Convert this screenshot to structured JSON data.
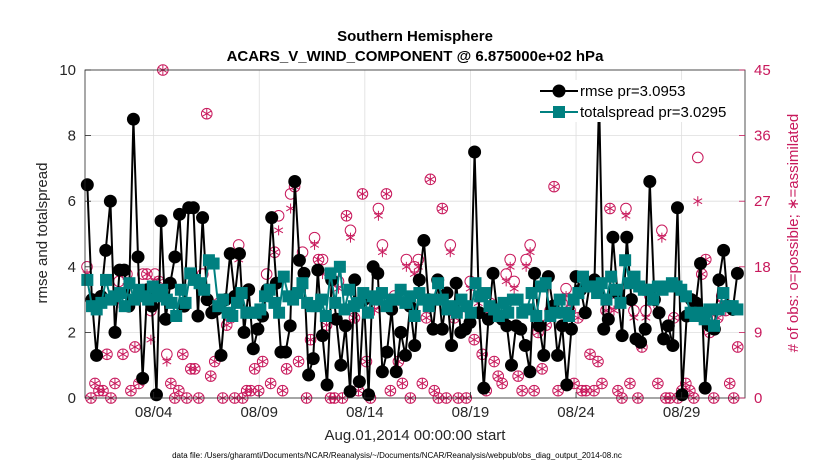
{
  "chart_data": {
    "type": "line",
    "title": "Southern Hemisphere",
    "subtitle": "ACARS_V_WIND_COMPONENT @ 6.875000e+02 hPa",
    "xlabel": "Aug.01,2014 00:00:00 start",
    "ylabel_left": "rmse and totalspread",
    "ylabel_right": "# of obs: o=possible; ∗=assimilated",
    "footnote": "data file: /Users/gharamti/Documents/NCAR/Reanalysis/~/Documents/NCAR/Reanalysis/webpub/obs_diag_output_2014-08.nc",
    "x_range_days": [
      0,
      31.25
    ],
    "ylim_left": [
      0,
      10
    ],
    "ylim_right": [
      0,
      45
    ],
    "x_ticks": [
      {
        "day": 3.25,
        "label": "08/04"
      },
      {
        "day": 8.25,
        "label": "08/09"
      },
      {
        "day": 13.25,
        "label": "08/14"
      },
      {
        "day": 18.25,
        "label": "08/19"
      },
      {
        "day": 23.25,
        "label": "08/24"
      },
      {
        "day": 28.25,
        "label": "08/29"
      }
    ],
    "y_ticks_left": [
      "0",
      "2",
      "4",
      "6",
      "8",
      "10"
    ],
    "y_ticks_right": [
      "0",
      "9",
      "18",
      "27",
      "36",
      "45"
    ],
    "series": [
      {
        "name": "rmse",
        "legend": "rmse pr=3.0953",
        "color": "#000000",
        "values": [
          6.5,
          3.0,
          1.3,
          3.1,
          4.5,
          6.0,
          2.0,
          3.9,
          3.9,
          2.8,
          8.5,
          4.3,
          0.6,
          3.3,
          2.8,
          0.1,
          5.4,
          2.4,
          3.5,
          4.3,
          5.6,
          2.8,
          5.8,
          5.8,
          2.5,
          5.5,
          3.0,
          2.6,
          2.7,
          1.3,
          3.0,
          4.4,
          3.1,
          4.4,
          2.0,
          3.3,
          1.5,
          2.1,
          2.5,
          3.3,
          5.5,
          3.5,
          1.4,
          1.4,
          2.2,
          6.6,
          4.2,
          3.8,
          0.7,
          1.2,
          3.9,
          1.9,
          0.4,
          3.6,
          2.4,
          1.0,
          2.2,
          0.2,
          3.6,
          0.5,
          3.0,
          0.1,
          4.0,
          3.8,
          0.8,
          1.4,
          2.7,
          0.8,
          2.0,
          1.3,
          2.8,
          1.6,
          3.6,
          4.8,
          3.0,
          2.1,
          3.6,
          2.1,
          3.2,
          1.6,
          3.5,
          2.0,
          2.1,
          2.3,
          7.5,
          2.6,
          0.3,
          2.4,
          3.8,
          2.5,
          2.4,
          2.2,
          1.0,
          2.2,
          2.1,
          1.6,
          0.8,
          3.8,
          2.2,
          1.3,
          3.7,
          2.8,
          1.3,
          2.2,
          0.4,
          2.1,
          3.7,
          3.3,
          2.6,
          3.5,
          3.6,
          9.1,
          2.1,
          2.4,
          4.9,
          3.2,
          1.9,
          4.9,
          3.0,
          1.8,
          1.7,
          2.1,
          6.6,
          3.0,
          2.6,
          1.8,
          2.2,
          1.6,
          5.8,
          0.1,
          2.5,
          3.0,
          2.9,
          4.1,
          0.3,
          2.2,
          2.1,
          3.6,
          4.5,
          2.8,
          2.7,
          3.8
        ],
        "values_y_unit": "rmse"
      },
      {
        "name": "totalspread",
        "legend": "totalspread pr=3.0295",
        "color": "#008080",
        "values": [
          3.6,
          2.8,
          2.7,
          2.9,
          3.6,
          3.0,
          3.1,
          3.2,
          2.8,
          3.5,
          3.0,
          3.3,
          3.1,
          3.0,
          3.4,
          3.1,
          3.3,
          3.0,
          2.9,
          2.5,
          3.3,
          2.9,
          3.8,
          3.6,
          3.5,
          3.3,
          4.2,
          4.1,
          2.8,
          3.0,
          2.6,
          2.5,
          2.9,
          3.2,
          2.6,
          2.6,
          2.6,
          2.7,
          3.1,
          3.3,
          2.9,
          2.6,
          3.7,
          3.1,
          3.0,
          3.2,
          3.5,
          2.9,
          2.8,
          2.8,
          3.0,
          2.5,
          3.8,
          2.9,
          4.0,
          2.7,
          3.3,
          2.8,
          2.9,
          3.2,
          2.6,
          3.1,
          3.0,
          3.2,
          2.8,
          3.0,
          3.0,
          3.3,
          2.9,
          3.1,
          2.5,
          3.2,
          3.0,
          2.8,
          3.0,
          3.5,
          3.0,
          2.7,
          2.8,
          2.6,
          3.0,
          2.8,
          2.6,
          3.5,
          3.1,
          3.2,
          2.8,
          2.7,
          2.5,
          2.9,
          2.6,
          3.0,
          3.0,
          2.6,
          2.7,
          3.2,
          2.5,
          3.4,
          3.5,
          2.5,
          2.6,
          3.0,
          2.6,
          2.5,
          3.0,
          3.2,
          3.7,
          3.4,
          3.4,
          3.2,
          3.5,
          3.0,
          3.7,
          3.3,
          2.9,
          4.2,
          3.5,
          3.7,
          3.4,
          3.3,
          3.3,
          3.0,
          3.4,
          3.3,
          3.4,
          3.5,
          3.4,
          3.3,
          3.1,
          2.6,
          2.5,
          2.6,
          2.4,
          2.7,
          2.2,
          2.7,
          3.2,
          2.8,
          2.8,
          2.7
        ],
        "values_y_unit": "rmse"
      }
    ],
    "obs_possible": [
      18,
      0,
      2,
      1,
      1,
      6,
      0,
      2,
      16,
      6,
      17,
      1,
      7,
      2,
      17,
      17,
      12,
      17,
      16,
      45,
      6,
      2,
      0,
      1,
      6,
      0,
      4,
      4,
      0,
      17,
      39,
      3,
      5,
      13,
      0,
      10,
      11,
      0,
      21,
      0,
      1,
      1,
      4,
      1,
      5,
      17,
      2,
      20,
      25,
      1,
      4,
      28,
      29,
      5,
      20,
      0,
      8,
      22,
      19,
      19,
      10,
      0,
      0,
      16,
      0,
      25,
      23,
      11,
      1,
      28,
      5,
      0,
      13,
      26,
      21,
      28,
      1,
      14,
      5,
      2,
      19,
      0,
      18,
      19,
      2,
      11,
      30,
      1,
      0,
      26,
      0,
      21,
      11,
      0,
      13,
      0,
      16,
      8,
      14,
      6,
      1,
      13,
      5,
      3,
      2,
      17,
      19,
      16,
      3,
      1,
      19,
      21,
      1,
      9,
      4,
      10,
      12,
      29,
      1,
      13,
      15,
      12,
      2,
      11,
      1,
      1,
      6,
      1,
      5,
      2,
      12,
      26,
      13,
      1,
      0,
      26,
      2,
      12,
      0,
      7,
      12,
      14,
      14,
      2,
      23,
      0,
      0,
      11,
      0,
      1,
      2,
      1,
      0,
      33,
      17,
      19,
      9,
      0,
      11,
      14,
      12,
      2,
      0,
      7
    ],
    "obs_assimilated": [
      17,
      0,
      2,
      1,
      1,
      6,
      0,
      2,
      13,
      6,
      16,
      1,
      7,
      2,
      15,
      17,
      8,
      16,
      16,
      45,
      5,
      2,
      0,
      1,
      6,
      0,
      4,
      4,
      0,
      15,
      39,
      3,
      5,
      12,
      0,
      10,
      11,
      0,
      19,
      0,
      1,
      1,
      4,
      1,
      5,
      15,
      2,
      20,
      23,
      1,
      4,
      26,
      29,
      5,
      17,
      0,
      8,
      21,
      19,
      17,
      10,
      0,
      0,
      15,
      0,
      25,
      22,
      11,
      1,
      28,
      5,
      0,
      12,
      25,
      20,
      28,
      1,
      13,
      5,
      2,
      18,
      0,
      17,
      18,
      2,
      11,
      30,
      1,
      0,
      26,
      0,
      20,
      11,
      0,
      12,
      0,
      15,
      8,
      13,
      6,
      1,
      12,
      5,
      3,
      2,
      16,
      18,
      15,
      3,
      1,
      18,
      20,
      1,
      9,
      4,
      10,
      12,
      29,
      1,
      12,
      14,
      12,
      2,
      11,
      1,
      1,
      6,
      1,
      5,
      2,
      12,
      26,
      12,
      1,
      0,
      25,
      2,
      11,
      0,
      7,
      11,
      13,
      13,
      2,
      22,
      0,
      0,
      11,
      0,
      1,
      2,
      1,
      0,
      27,
      17,
      19,
      9,
      0,
      11,
      13,
      12,
      2,
      0,
      7
    ],
    "legend_position": "top-right",
    "grid": true
  }
}
